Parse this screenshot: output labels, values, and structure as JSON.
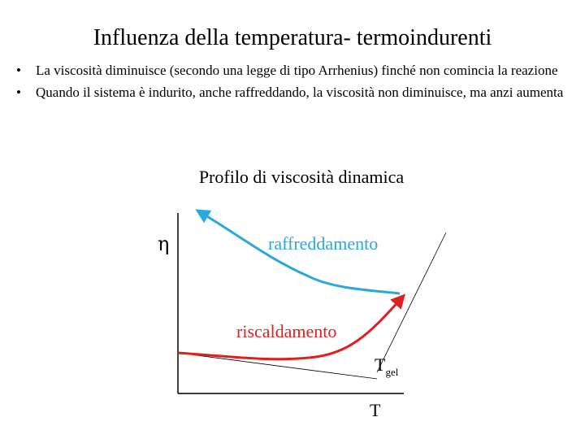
{
  "slide": {
    "title": "Influenza della temperatura- termoindurenti",
    "bullets": [
      "La viscosità diminuisce (secondo una legge di tipo Arrhenius) finché non comincia la reazione",
      "Quando il sistema è indurito, anche raffreddando, la viscosità non diminuisce, ma anzi aumenta"
    ],
    "bullet_marker": "•"
  },
  "diagram": {
    "title": "Profilo di viscosità dinamica",
    "y_axis_label": "η",
    "x_axis_label": "T",
    "gel_label_main": "T",
    "gel_label_sub": "gel",
    "cooling_label": "raffreddamento",
    "heating_label": "riscaldamento",
    "colors": {
      "cooling": "#29a8db",
      "heating": "#e02020",
      "axes": "#000000"
    }
  }
}
